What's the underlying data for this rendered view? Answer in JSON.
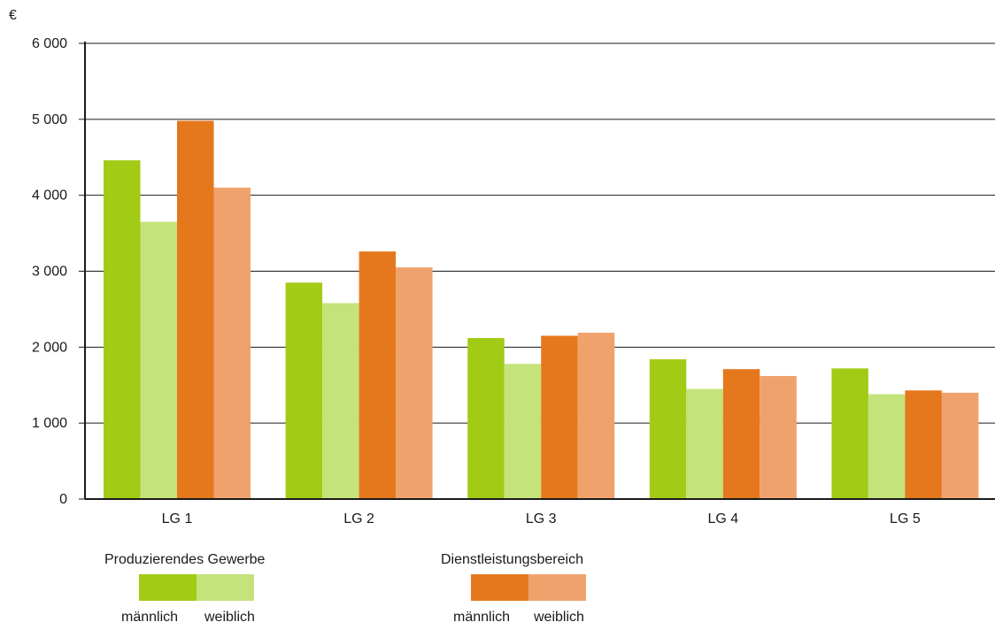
{
  "chart_data": {
    "type": "bar",
    "unit": "€",
    "categories": [
      "LG 1",
      "LG 2",
      "LG 3",
      "LG 4",
      "LG 5"
    ],
    "series": [
      {
        "values": [
          4460,
          2850,
          2120,
          1840,
          1720
        ],
        "color": "#a2cb16"
      },
      {
        "values": [
          3650,
          2580,
          1780,
          1450,
          1380
        ],
        "color": "#c4e37a"
      },
      {
        "values": [
          4980,
          3260,
          2150,
          1710,
          1430
        ],
        "color": "#e5781c"
      },
      {
        "values": [
          4100,
          3050,
          2190,
          1620,
          1400
        ],
        "color": "#f0a26d"
      }
    ],
    "yticks": [
      "0",
      "1 000",
      "2 000",
      "3 000",
      "4 000",
      "5 000",
      "6 000"
    ],
    "ylim": [
      0,
      6000
    ],
    "grid": true
  },
  "legend": {
    "groups": [
      {
        "title": "Produzierendes Gewerbe",
        "male_label": "männlich",
        "female_label": "weiblich",
        "male_color": "#a2cb16",
        "female_color": "#c4e37a"
      },
      {
        "title": "Dienstleistungsbereich",
        "male_label": "männlich",
        "female_label": "weiblich",
        "male_color": "#e5781c",
        "female_color": "#f0a26d"
      }
    ]
  }
}
